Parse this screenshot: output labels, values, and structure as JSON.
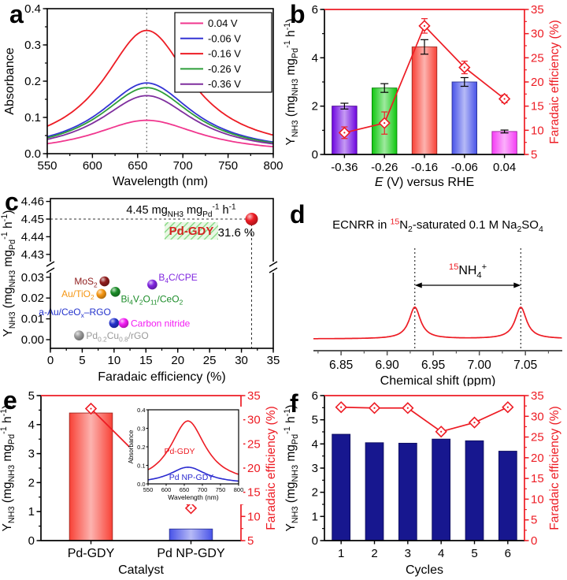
{
  "panels": {
    "a": {
      "label": "a"
    },
    "b": {
      "label": "b"
    },
    "c": {
      "label": "c"
    },
    "d": {
      "label": "d"
    },
    "e": {
      "label": "e"
    },
    "f": {
      "label": "f"
    }
  },
  "colors": {
    "accent_red": "#ed1c24",
    "navy_bar": "#17178f"
  },
  "chart_data": [
    {
      "panel": "a",
      "type": "line",
      "xlabel": "Wavelength (nm)",
      "ylabel": "Absorbance",
      "x_range": [
        550,
        800
      ],
      "x_ticks": [
        550,
        600,
        650,
        700,
        750,
        800
      ],
      "x_minor": 25,
      "x_decimals": 0,
      "y_range": [
        0,
        0.4
      ],
      "y_ticks": [
        0.0,
        0.1,
        0.2,
        0.3,
        0.4
      ],
      "y_minor": 0.05,
      "y_decimals": 1,
      "peak_center_nm": 660,
      "legend_position": "top-right",
      "series": [
        {
          "name": "0.04 V",
          "color": "#f0368e",
          "peak_absorbance": 0.092,
          "halfwidth_nm": 72
        },
        {
          "name": "-0.06 V",
          "color": "#3434d4",
          "peak_absorbance": 0.195,
          "halfwidth_nm": 62
        },
        {
          "name": "-0.16 V",
          "color": "#ed1c24",
          "peak_absorbance": 0.34,
          "halfwidth_nm": 59
        },
        {
          "name": "-0.26 V",
          "color": "#2e9e3a",
          "peak_absorbance": 0.182,
          "halfwidth_nm": 62
        },
        {
          "name": "-0.36 V",
          "color": "#7f2f9e",
          "peak_absorbance": 0.16,
          "halfwidth_nm": 63
        }
      ]
    },
    {
      "panel": "b",
      "type": "bar-line",
      "categories": [
        "-0.36",
        "-0.26",
        "-0.16",
        "-0.06",
        "0.04"
      ],
      "bars": {
        "values": [
          2.0,
          2.75,
          4.45,
          3.0,
          0.95
        ],
        "errors": [
          0.12,
          0.18,
          0.3,
          0.18,
          0.06
        ],
        "colors": [
          "#6e05e0",
          "#0fc80f",
          "#f84136",
          "#4853e8",
          "#f53cf5"
        ],
        "gradient": true
      },
      "fe": {
        "values": [
          9.5,
          11.5,
          31.6,
          23.0,
          16.5
        ],
        "errors": [
          1.2,
          2.3,
          1.5,
          1.3,
          0.8
        ],
        "color": "#ed1c24"
      },
      "left_axis": {
        "range": [
          0,
          6
        ],
        "ticks": [
          0,
          2,
          4,
          6
        ],
        "minor": 1,
        "decimals": 0
      },
      "right_axis": {
        "range": [
          5,
          35
        ],
        "ticks": [
          5,
          10,
          15,
          20,
          25,
          30,
          35
        ],
        "minor": 2.5,
        "decimals": 0
      },
      "xlabel_parts": [
        {
          "t": "E",
          "i": true
        },
        {
          "t": " (V) versus RHE"
        }
      ],
      "ylabel_parts": [
        {
          "t": "Y"
        },
        {
          "t": "NH3",
          "sub": true
        },
        {
          "t": " (mg"
        },
        {
          "t": "NH3",
          "sub": true
        },
        {
          "t": " mg"
        },
        {
          "t": "Pd",
          "sub": true
        },
        {
          "t": "-1",
          "sup": true
        },
        {
          "t": " h"
        },
        {
          "t": "-1",
          "sup": true
        },
        {
          "t": ")"
        }
      ],
      "right_label": "Faradaic efficiency (%)"
    },
    {
      "panel": "c",
      "type": "scatter-broken",
      "xlabel": "Faradaic efficiency (%)",
      "ylabel_parts": [
        {
          "t": "Y"
        },
        {
          "t": "NH3",
          "sub": true
        },
        {
          "t": " (mg"
        },
        {
          "t": "NH3",
          "sub": true
        },
        {
          "t": " mg"
        },
        {
          "t": "Pd",
          "sub": true
        },
        {
          "t": "-1",
          "sup": true
        },
        {
          "t": " h"
        },
        {
          "t": "-1",
          "sup": true
        },
        {
          "t": ")"
        }
      ],
      "x_range": [
        0,
        35
      ],
      "x_ticks": [
        0,
        5,
        10,
        15,
        20,
        25,
        30,
        35
      ],
      "x_minor": 2.5,
      "y_top_ticks": [
        4.43,
        4.44,
        4.45,
        4.46
      ],
      "y_bottom_ticks": [
        0.0,
        0.01,
        0.02,
        0.03
      ],
      "points": [
        {
          "name": "Pd-GDY",
          "x": 31.6,
          "y": 4.45,
          "color": "#ed1c24",
          "highlight": true
        },
        {
          "name": "MoS2",
          "label_parts": [
            {
              "t": "MoS"
            },
            {
              "t": "2",
              "sub": true
            }
          ],
          "x": 8.5,
          "y": 0.028,
          "color": "#8e1b1b",
          "pos": "left"
        },
        {
          "name": "Au/TiO2",
          "label_parts": [
            {
              "t": "Au/TiO"
            },
            {
              "t": "2",
              "sub": true
            }
          ],
          "x": 8.0,
          "y": 0.022,
          "color": "#f59613",
          "pos": "left"
        },
        {
          "name": "Bi4V2O11/CeO2",
          "label_parts": [
            {
              "t": "Bi"
            },
            {
              "t": "4",
              "sub": true
            },
            {
              "t": "V"
            },
            {
              "t": "2",
              "sub": true
            },
            {
              "t": "O"
            },
            {
              "t": "11",
              "sub": true
            },
            {
              "t": "/CeO"
            },
            {
              "t": "2",
              "sub": true
            }
          ],
          "x": 10.2,
          "y": 0.023,
          "color": "#1b8c28",
          "pos": "right-below"
        },
        {
          "name": "B4C/CPE",
          "label_parts": [
            {
              "t": "B"
            },
            {
              "t": "4",
              "sub": true
            },
            {
              "t": "C/CPE"
            }
          ],
          "x": 16.0,
          "y": 0.0265,
          "color": "#8026e0",
          "pos": "right-above"
        },
        {
          "name": "a-Au/CeOx-RGO",
          "label_parts": [
            {
              "t": "a-Au/CeO"
            },
            {
              "t": "x",
              "sub": true
            },
            {
              "t": "–RGO"
            }
          ],
          "x": 10.0,
          "y": 0.008,
          "color": "#2433cc",
          "pos": "above-left"
        },
        {
          "name": "Carbon nitride",
          "label_parts": [
            {
              "t": "Carbon nitride"
            }
          ],
          "x": 11.5,
          "y": 0.008,
          "color": "#f31cf3",
          "pos": "right"
        },
        {
          "name": "Pd0.2Cu0.8/rGO",
          "label_parts": [
            {
              "t": "Pd"
            },
            {
              "t": "0.2",
              "sub": true
            },
            {
              "t": "Cu"
            },
            {
              "t": "0.8",
              "sub": true
            },
            {
              "t": "/rGO"
            }
          ],
          "x": 4.5,
          "y": 0.002,
          "color": "#9a9a9a",
          "pos": "right"
        }
      ],
      "annotation_parts": [
        {
          "t": "4.45 mg"
        },
        {
          "t": "NH3",
          "sub": true
        },
        {
          "t": " mg"
        },
        {
          "t": "Pd",
          "sub": true
        },
        {
          "t": "-1",
          "sup": true
        },
        {
          "t": " h"
        },
        {
          "t": "-1",
          "sup": true
        }
      ],
      "fe_annotation": "31.6 %",
      "highlight_box_label": "Pd-GDY",
      "dashed_guide": {
        "x": 31.6,
        "y": 4.45
      }
    },
    {
      "panel": "d",
      "type": "nmr-line",
      "title_parts": [
        {
          "t": "ECNRR in "
        },
        {
          "t": "15",
          "sup": true,
          "c": "#ed1c24"
        },
        {
          "t": "N"
        },
        {
          "t": "2",
          "sub": true
        },
        {
          "t": "-saturated 0.1 M Na"
        },
        {
          "t": "2",
          "sub": true
        },
        {
          "t": "SO"
        },
        {
          "t": "4",
          "sub": true
        }
      ],
      "peak_label_parts": [
        {
          "t": "15",
          "sup": true,
          "c": "#ed1c24"
        },
        {
          "t": "NH"
        },
        {
          "t": "4",
          "sub": true
        },
        {
          "t": "+",
          "sup": true
        }
      ],
      "xlabel": "Chemical shift (ppm)",
      "x_range": [
        6.82,
        7.09
      ],
      "x_ticks": [
        6.85,
        6.9,
        6.95,
        7.0,
        7.05
      ],
      "x_minor": 0.025,
      "x_decimals": 2,
      "peaks_ppm": [
        6.93,
        7.045
      ],
      "color": "#ed1c24"
    },
    {
      "panel": "e",
      "type": "bar-line",
      "categories": [
        "Pd-GDY",
        "Pd NP-GDY"
      ],
      "bars": {
        "values": [
          4.4,
          0.4
        ],
        "colors": [
          "#f84136",
          "#4853e8"
        ],
        "gradient": true
      },
      "fe": {
        "values": [
          32.3,
          11.7
        ],
        "color": "#ed1c24"
      },
      "left_axis": {
        "range": [
          0,
          5
        ],
        "ticks": [
          0,
          1,
          2,
          3,
          4,
          5
        ],
        "minor": 0.5,
        "decimals": 0
      },
      "right_axis": {
        "range": [
          5,
          35
        ],
        "ticks": [
          5,
          10,
          15,
          20,
          25,
          30,
          35
        ],
        "minor": 2.5,
        "decimals": 0
      },
      "xlabel_parts": [
        {
          "t": "Catalyst"
        }
      ],
      "ylabel_parts": [
        {
          "t": "Y"
        },
        {
          "t": "NH3",
          "sub": true
        },
        {
          "t": " (mg"
        },
        {
          "t": "NH3",
          "sub": true
        },
        {
          "t": " mg"
        },
        {
          "t": "Pd",
          "sub": true
        },
        {
          "t": "-1",
          "sup": true
        },
        {
          "t": " h"
        },
        {
          "t": "-1",
          "sup": true
        },
        {
          "t": ")"
        }
      ],
      "right_label": "Faradaic efficiency (%)",
      "inset": {
        "xlabel": "Wavelength (nm)",
        "ylabel": "Absorbance",
        "x_range": [
          550,
          800
        ],
        "x_ticks": [
          550,
          600,
          650,
          700,
          750,
          800
        ],
        "y_range": [
          0,
          0.4
        ],
        "y_ticks": [
          0.0,
          0.1,
          0.2,
          0.3,
          0.4
        ],
        "peak_center_nm": 660,
        "series": [
          {
            "name": "Pd-GDY",
            "color": "#ed1c24",
            "peak_absorbance": 0.34,
            "halfwidth_nm": 59
          },
          {
            "name": "Pd NP-GDY",
            "color": "#2a2ad0",
            "peak_absorbance": 0.09,
            "halfwidth_nm": 62
          }
        ]
      }
    },
    {
      "panel": "f",
      "type": "bar-line",
      "categories": [
        "1",
        "2",
        "3",
        "4",
        "5",
        "6"
      ],
      "bars": {
        "values": [
          4.4,
          4.05,
          4.03,
          4.2,
          4.13,
          3.7
        ],
        "colors": [
          "#17178f",
          "#17178f",
          "#17178f",
          "#17178f",
          "#17178f",
          "#17178f"
        ],
        "gradient": false
      },
      "fe": {
        "values": [
          32.2,
          32.0,
          32.0,
          26.3,
          28.5,
          32.2
        ],
        "color": "#ed1c24"
      },
      "left_axis": {
        "range": [
          0,
          6
        ],
        "ticks": [
          0,
          1,
          2,
          3,
          4,
          5,
          6
        ],
        "minor": 0.5,
        "decimals": 0
      },
      "right_axis": {
        "range": [
          0,
          35
        ],
        "ticks": [
          0,
          5,
          10,
          15,
          20,
          25,
          30,
          35
        ],
        "minor": 2.5,
        "decimals": 0
      },
      "xlabel_parts": [
        {
          "t": "Cycles"
        }
      ],
      "ylabel_parts": [
        {
          "t": "Y"
        },
        {
          "t": "NH3",
          "sub": true
        },
        {
          "t": " (mg"
        },
        {
          "t": "NH3",
          "sub": true
        },
        {
          "t": " mg"
        },
        {
          "t": "Pd",
          "sub": true
        },
        {
          "t": "-1",
          "sup": true
        },
        {
          "t": " h"
        },
        {
          "t": "-1",
          "sup": true
        },
        {
          "t": ")"
        }
      ],
      "right_label": "Faradaic efficiency (%)"
    }
  ]
}
